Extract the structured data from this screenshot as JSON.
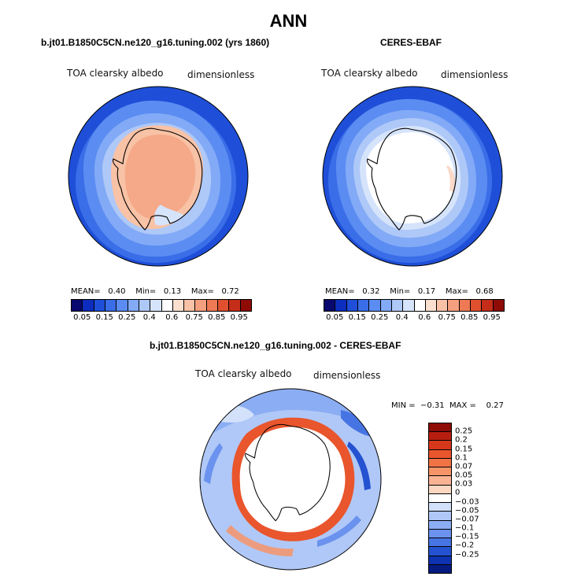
{
  "title": "ANN",
  "panels": [
    {
      "subtitle": "b.jt01.B1850C5CN.ne120_g16.tuning.002 (yrs 1860)",
      "variable": "TOA clearsky albedo",
      "units": "dimensionless",
      "stats": {
        "mean_label": "MEAN=",
        "mean": "0.40",
        "min_label": "Min=",
        "min": "0.13",
        "max_label": "Max=",
        "max": "0.72"
      }
    },
    {
      "subtitle": "CERES-EBAF",
      "variable": "TOA clearsky albedo",
      "units": "dimensionless",
      "stats": {
        "mean_label": "MEAN=",
        "mean": "0.32",
        "min_label": "Min=",
        "min": "0.17",
        "max_label": "Max=",
        "max": "0.68"
      }
    }
  ],
  "colorbar": {
    "colors": [
      "#08086e",
      "#0c2dbd",
      "#1f4fd8",
      "#3a6ee8",
      "#5b8cf2",
      "#82aaf6",
      "#aec8f8",
      "#d6e4fb",
      "#ffffff",
      "#fbe0d0",
      "#f8c2a6",
      "#f4a07e",
      "#ee7a55",
      "#e0502f",
      "#c42d18",
      "#8e0b06"
    ],
    "labels": [
      "0.05",
      "0.15",
      "0.25",
      "0.4",
      "0.6",
      "0.75",
      "0.85",
      "0.95"
    ]
  },
  "diff_panel": {
    "subtitle": "b.jt01.B1850C5CN.ne120_g16.tuning.002 - CERES-EBAF",
    "variable": "TOA clearsky albedo",
    "units": "dimensionless",
    "stats": {
      "min_label": "MIN =",
      "min": "−0.31",
      "max_label": "MAX =",
      "max": "0.27"
    }
  },
  "diff_colorbar": {
    "colors": [
      "#8e0b06",
      "#b81e10",
      "#d6381c",
      "#e9552c",
      "#f27444",
      "#f79468",
      "#fab494",
      "#fcd7c2",
      "#ffffff",
      "#d3e1fb",
      "#b0c8f7",
      "#8badf3",
      "#6a92ee",
      "#4774e3",
      "#2452d0",
      "#0f33b0",
      "#061b80"
    ],
    "labels": [
      "0.25",
      "0.2",
      "0.15",
      "0.1",
      "0.07",
      "0.05",
      "0.03",
      "0",
      "−0.03",
      "−0.05",
      "−0.07",
      "−0.1",
      "−0.15",
      "−0.2",
      "−0.25"
    ]
  }
}
